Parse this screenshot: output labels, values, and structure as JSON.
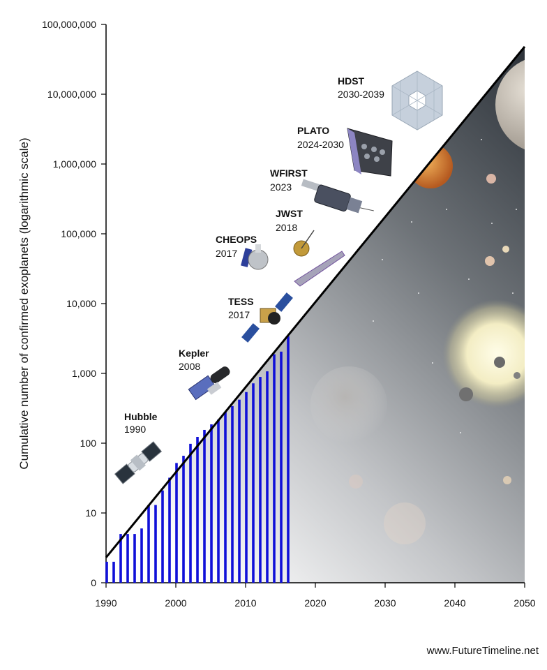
{
  "chart_data": {
    "type": "bar",
    "title": "",
    "xlabel": "",
    "ylabel": "Cumulative number of confirmed exoplanets (logarithmic scale)",
    "x_scale": "linear",
    "y_scale": "log",
    "xlim": [
      1990,
      2050
    ],
    "ylim": [
      1,
      100000000
    ],
    "x_ticks": [
      1990,
      2000,
      2010,
      2020,
      2030,
      2040,
      2050
    ],
    "x_tick_labels": [
      "1990",
      "2000",
      "2010",
      "2020",
      "2030",
      "2040",
      "2050"
    ],
    "y_ticks": [
      1,
      10,
      100,
      1000,
      10000,
      100000,
      1000000,
      10000000,
      100000000
    ],
    "y_tick_labels": [
      "0",
      "10",
      "100",
      "1,000",
      "10,000",
      "100,000",
      "1,000,000",
      "10,000,000",
      "100,000,000"
    ],
    "bar_color": "#1010d8",
    "bars": [
      {
        "year": 1990,
        "value": 2
      },
      {
        "year": 1991,
        "value": 2
      },
      {
        "year": 1992,
        "value": 5
      },
      {
        "year": 1993,
        "value": 5
      },
      {
        "year": 1994,
        "value": 5
      },
      {
        "year": 1995,
        "value": 6
      },
      {
        "year": 1996,
        "value": 13
      },
      {
        "year": 1997,
        "value": 13
      },
      {
        "year": 1998,
        "value": 21
      },
      {
        "year": 1999,
        "value": 32
      },
      {
        "year": 2000,
        "value": 52
      },
      {
        "year": 2001,
        "value": 66
      },
      {
        "year": 2002,
        "value": 98
      },
      {
        "year": 2003,
        "value": 123
      },
      {
        "year": 2004,
        "value": 155
      },
      {
        "year": 2005,
        "value": 186
      },
      {
        "year": 2006,
        "value": 218
      },
      {
        "year": 2007,
        "value": 280
      },
      {
        "year": 2008,
        "value": 340
      },
      {
        "year": 2009,
        "value": 420
      },
      {
        "year": 2010,
        "value": 540
      },
      {
        "year": 2011,
        "value": 720
      },
      {
        "year": 2012,
        "value": 890
      },
      {
        "year": 2013,
        "value": 1070
      },
      {
        "year": 2014,
        "value": 1880
      },
      {
        "year": 2015,
        "value": 2050
      },
      {
        "year": 2016,
        "value": 3400
      }
    ],
    "trend_line": {
      "start": [
        1990,
        2.3
      ],
      "end": [
        2050,
        48000000
      ],
      "color": "#000000"
    },
    "missions": [
      {
        "name": "Hubble",
        "years": "1990",
        "icon": "hubble-telescope-icon"
      },
      {
        "name": "Kepler",
        "years": "2008",
        "icon": "kepler-telescope-icon"
      },
      {
        "name": "TESS",
        "years": "2017",
        "icon": "tess-satellite-icon"
      },
      {
        "name": "CHEOPS",
        "years": "2017",
        "icon": "cheops-satellite-icon"
      },
      {
        "name": "JWST",
        "years": "2018",
        "icon": "jwst-telescope-icon"
      },
      {
        "name": "WFIRST",
        "years": "2023",
        "icon": "wfirst-telescope-icon"
      },
      {
        "name": "PLATO",
        "years": "2024-2030",
        "icon": "plato-telescope-icon"
      },
      {
        "name": "HDST",
        "years": "2030-2039",
        "icon": "hdst-telescope-icon"
      }
    ]
  },
  "credit": "www.FutureTimeline.net"
}
